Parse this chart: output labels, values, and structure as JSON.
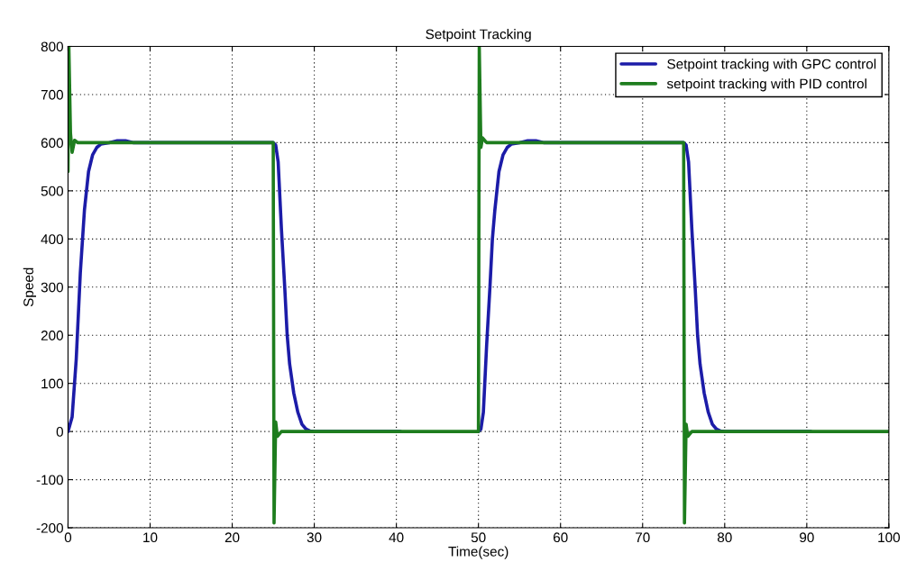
{
  "chart_data": {
    "type": "line",
    "title": "Setpoint Tracking",
    "xlabel": "Time(sec)",
    "ylabel": "Speed",
    "xlim": [
      0,
      100
    ],
    "ylim": [
      -200,
      800
    ],
    "xticks": [
      0,
      10,
      20,
      30,
      40,
      50,
      60,
      70,
      80,
      90,
      100
    ],
    "yticks": [
      -200,
      -100,
      0,
      100,
      200,
      300,
      400,
      500,
      600,
      700,
      800
    ],
    "grid": true,
    "legend": "top right",
    "line_style": "solid",
    "marker": "none",
    "series": [
      {
        "name": "Setpoint tracking with GPC control",
        "color": "#1c1ca8",
        "x": [
          0,
          0.5,
          1,
          1.5,
          2,
          2.5,
          3,
          3.5,
          4,
          5,
          6,
          7,
          8,
          25,
          25.3,
          25.6,
          26,
          26.4,
          26.7,
          27,
          27.5,
          28,
          28.5,
          29,
          29.5,
          30,
          40.5,
          41,
          50,
          50.3,
          50.6,
          51,
          51.4,
          51.7,
          52,
          52.5,
          53,
          53.5,
          54,
          55,
          56,
          57,
          58,
          75,
          75.3,
          75.6,
          76,
          76.4,
          76.7,
          77,
          77.5,
          78,
          78.5,
          79,
          79.5,
          80,
          90.5
        ],
        "values": [
          0,
          30,
          150,
          330,
          460,
          540,
          575,
          590,
          597,
          600,
          604,
          604,
          600,
          600,
          595,
          560,
          420,
          300,
          200,
          140,
          80,
          40,
          15,
          5,
          1,
          0,
          0,
          null,
          0,
          5,
          40,
          180,
          300,
          400,
          460,
          540,
          575,
          590,
          597,
          600,
          604,
          604,
          600,
          600,
          595,
          560,
          420,
          300,
          200,
          140,
          80,
          40,
          15,
          5,
          1,
          0,
          0
        ]
      },
      {
        "name": "setpoint tracking with PID control",
        "color": "#1e7d1e",
        "x": [
          0,
          0.1,
          0.3,
          0.5,
          0.8,
          1.2,
          25,
          25.1,
          25.3,
          25.5,
          26,
          50,
          50.1,
          50.3,
          50.5,
          51,
          75,
          75.1,
          75.3,
          75.5,
          76,
          100
        ],
        "values": [
          540,
          800,
          620,
          580,
          605,
          600,
          600,
          -190,
          20,
          -10,
          0,
          0,
          800,
          590,
          610,
          600,
          600,
          -190,
          15,
          -10,
          0,
          0
        ]
      }
    ]
  }
}
